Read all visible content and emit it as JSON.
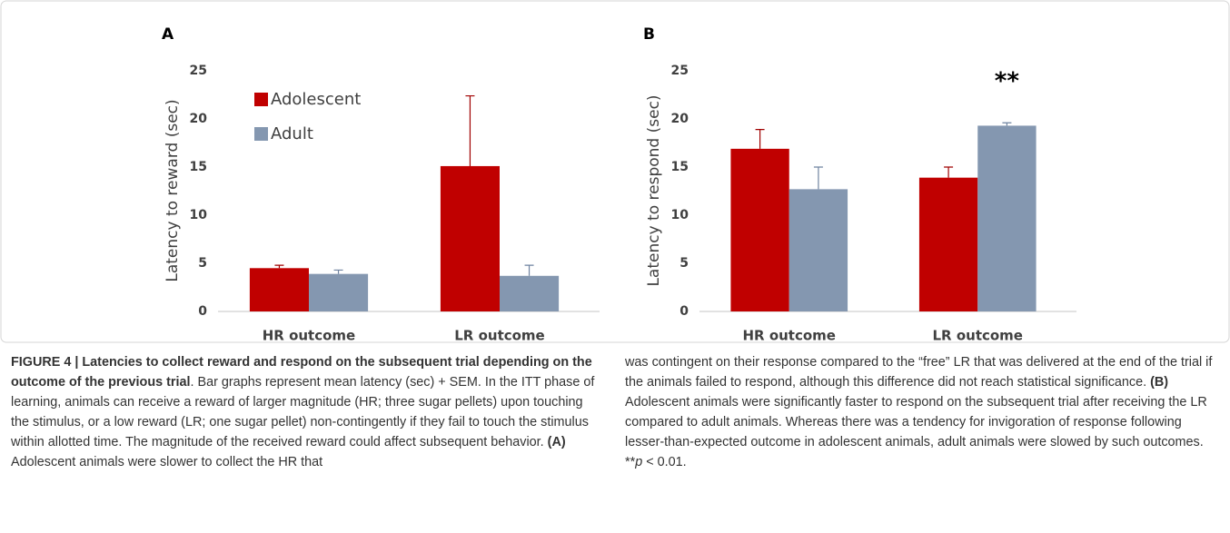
{
  "chart_data": [
    {
      "type": "bar",
      "panel": "A",
      "y_label": "Latency to reward (sec)",
      "categories": [
        "HR outcome",
        "LR outcome"
      ],
      "series": [
        {
          "name": "Adolescent",
          "color": "#c00000",
          "values": [
            4.5,
            15.1
          ],
          "errors": [
            0.3,
            7.3
          ]
        },
        {
          "name": "Adult",
          "color": "#8497b0",
          "values": [
            3.9,
            3.7
          ],
          "errors": [
            0.4,
            1.1
          ]
        }
      ],
      "ylim": [
        0,
        25
      ],
      "yticks": [
        0,
        5,
        10,
        15,
        20,
        25
      ],
      "legend": "upper left"
    },
    {
      "type": "bar",
      "panel": "B",
      "y_label": "Latency to respond (sec)",
      "categories": [
        "HR outcome",
        "LR outcome"
      ],
      "series": [
        {
          "name": "Adolescent",
          "color": "#c00000",
          "values": [
            16.9,
            13.9
          ],
          "errors": [
            2.0,
            1.1
          ]
        },
        {
          "name": "Adult",
          "color": "#8497b0",
          "values": [
            12.7,
            19.3
          ],
          "errors": [
            2.3,
            0.3
          ]
        }
      ],
      "ylim": [
        0,
        25
      ],
      "yticks": [
        0,
        5,
        10,
        15,
        20,
        25
      ],
      "annotation": "**"
    }
  ],
  "caption": {
    "columns": [
      [
        {
          "text": "FIGURE 4 | Latencies to collect reward and respond on the subsequent trial depending on the outcome of the previous trial",
          "bold": true
        },
        {
          "text": ". Bar graphs represent mean latency (sec) + SEM. In the ITT phase of learning, animals can receive a reward of larger magnitude (HR; three sugar pellets) upon touching the stimulus, or a low reward (LR; one sugar pellet) non-contingently if they fail to touch the stimulus within allotted time. The magnitude of the received reward could affect subsequent behavior. "
        },
        {
          "text": "(A)",
          "bold": true
        },
        {
          "text": " Adolescent animals were slower to collect the HR that"
        }
      ],
      [
        {
          "text": "was contingent on their response compared to the “free” LR that was delivered at the end of the trial if the animals failed to respond, although this difference did not reach statistical significance. "
        },
        {
          "text": "(B)",
          "bold": true
        },
        {
          "text": " Adolescent animals were significantly faster to respond on the subsequent trial after receiving the LR compared to adult animals. Whereas there was a tendency for invigoration of response following lesser-than-expected outcome in adolescent animals, adult animals were slowed by such outcomes. **"
        },
        {
          "text": "p",
          "italic": true
        },
        {
          "text": " < 0.01."
        }
      ]
    ]
  }
}
